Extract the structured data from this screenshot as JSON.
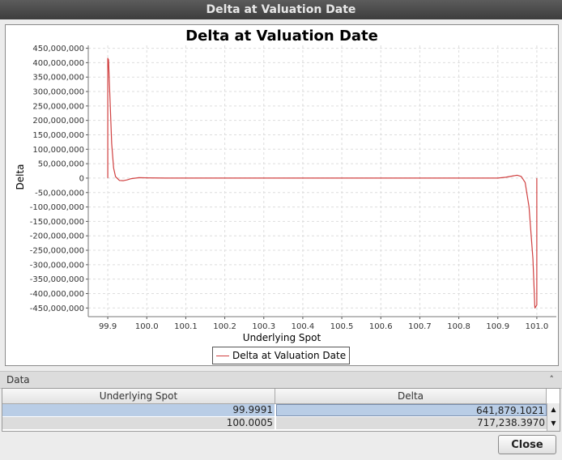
{
  "window": {
    "title": "Delta at Valuation Date"
  },
  "chart_data": {
    "type": "line",
    "title": "Delta at Valuation Date",
    "xlabel": "Underlying Spot",
    "ylabel": "Delta",
    "xlim": [
      99.85,
      101.05
    ],
    "ylim": [
      -480000000,
      460000000
    ],
    "x_ticks": [
      "99.9",
      "100.0",
      "100.1",
      "100.2",
      "100.3",
      "100.4",
      "100.5",
      "100.6",
      "100.7",
      "100.8",
      "100.9",
      "101.0"
    ],
    "y_ticks": [
      "450,000,000",
      "400,000,000",
      "350,000,000",
      "300,000,000",
      "250,000,000",
      "200,000,000",
      "150,000,000",
      "100,000,000",
      "50,000,000",
      "0",
      "-50,000,000",
      "-100,000,000",
      "-150,000,000",
      "-200,000,000",
      "-250,000,000",
      "-300,000,000",
      "-350,000,000",
      "-400,000,000",
      "-450,000,000"
    ],
    "grid": true,
    "legend_position": "bottom",
    "series": [
      {
        "name": "Delta at Valuation Date",
        "color": "#d04040",
        "x": [
          99.9,
          99.9,
          99.902,
          99.905,
          99.91,
          99.915,
          99.92,
          99.93,
          99.94,
          99.95,
          99.96,
          99.98,
          100.0,
          100.05,
          100.1,
          100.5,
          100.9,
          100.92,
          100.94,
          100.95,
          100.96,
          100.97,
          100.98,
          100.99,
          100.995,
          101.0,
          101.0
        ],
        "y": [
          0,
          415000000,
          410000000,
          300000000,
          120000000,
          35000000,
          5000000,
          -8000000,
          -9000000,
          -6000000,
          -2000000,
          1500000,
          1000000,
          0,
          0,
          0,
          0,
          3000000,
          8000000,
          10000000,
          6000000,
          -15000000,
          -100000000,
          -280000000,
          -450000000,
          -440000000,
          0
        ]
      }
    ]
  },
  "data_section": {
    "label": "Data"
  },
  "table": {
    "columns": [
      "Underlying Spot",
      "Delta"
    ],
    "rows": [
      [
        "99.9991",
        "641,879.1021"
      ],
      [
        "100.0005",
        "717,238.3970"
      ]
    ]
  },
  "buttons": {
    "close": "Close"
  }
}
